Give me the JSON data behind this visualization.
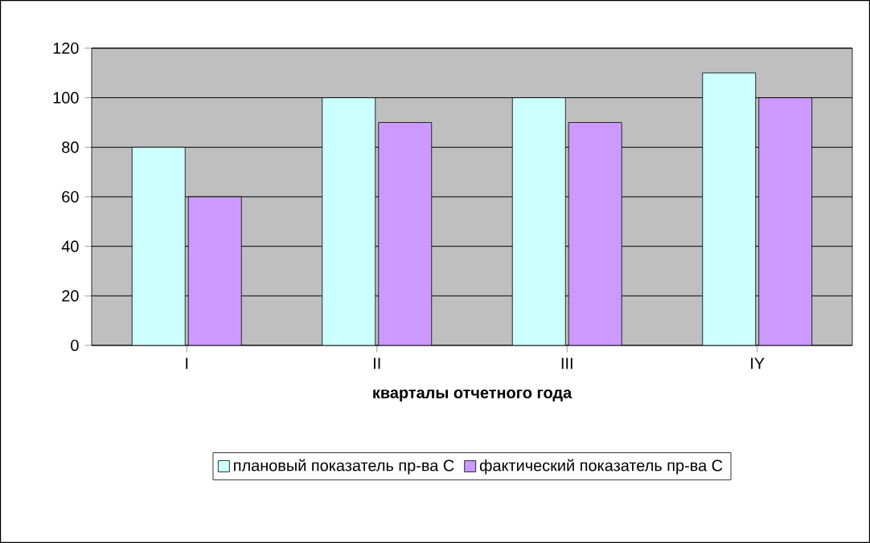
{
  "chart_data": {
    "type": "bar",
    "xlabel": "кварталы отчетного года",
    "categories": [
      "I",
      "II",
      "III",
      "IY"
    ],
    "series": [
      {
        "name": "плановый показатель пр-ва С",
        "color": "#ccffff",
        "values": [
          80,
          100,
          100,
          110
        ]
      },
      {
        "name": "фактический показатель пр-ва С",
        "color": "#cc99ff",
        "values": [
          60,
          90,
          90,
          100
        ]
      }
    ],
    "ylim": [
      0,
      120
    ],
    "yticks": [
      0,
      20,
      40,
      60,
      80,
      100,
      120
    ],
    "grid": "y",
    "legend": "bottom"
  }
}
